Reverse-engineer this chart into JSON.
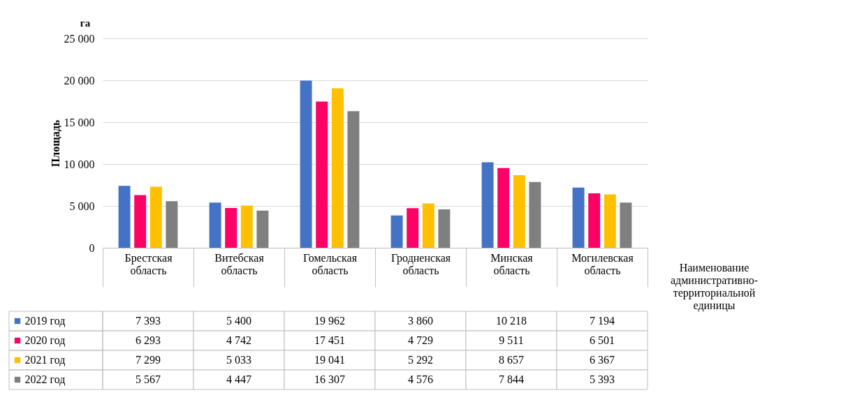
{
  "chart_data": {
    "type": "bar",
    "ylabel": "Площадь",
    "xlabel": "Наименование административно-территориальной единицы",
    "annotations": [
      "га"
    ],
    "categories": [
      "Брестская область",
      "Витебская область",
      "Гомельская область",
      "Гродненская область",
      "Минская область",
      "Могилевская область"
    ],
    "series": [
      {
        "name": "2019 год",
        "color": "#4472c4",
        "values": [
          7393,
          5400,
          19962,
          3860,
          10218,
          7194
        ],
        "value_labels": [
          "7 393",
          "5 400",
          "19 962",
          "3 860",
          "10 218",
          "7 194"
        ]
      },
      {
        "name": "2020 год",
        "color": "#ff0066",
        "values": [
          6293,
          4742,
          17451,
          4729,
          9511,
          6501
        ],
        "value_labels": [
          "6 293",
          "4 742",
          "17 451",
          "4 729",
          "9 511",
          "6 501"
        ]
      },
      {
        "name": "2021 год",
        "color": "#ffc000",
        "values": [
          7299,
          5033,
          19041,
          5292,
          8657,
          6367
        ],
        "value_labels": [
          "7 299",
          "5 033",
          "19 041",
          "5 292",
          "8 657",
          "6 367"
        ]
      },
      {
        "name": "2022 год",
        "color": "#7f7f7f",
        "values": [
          5567,
          4447,
          16307,
          4576,
          7844,
          5393
        ],
        "value_labels": [
          "5 567",
          "4 447",
          "16 307",
          "4 576",
          "7 844",
          "5 393"
        ]
      }
    ],
    "ylim": [
      0,
      25000
    ],
    "yticks": [
      0,
      {
        "value": 5000,
        "label": "5 000"
      },
      {
        "value": 10000,
        "label": "10 000"
      },
      {
        "value": 15000,
        "label": "15 000"
      },
      {
        "value": 20000,
        "label": "20 000"
      },
      {
        "value": 25000,
        "label": "25 000"
      }
    ],
    "grid": "y",
    "legend": "bottom left"
  }
}
